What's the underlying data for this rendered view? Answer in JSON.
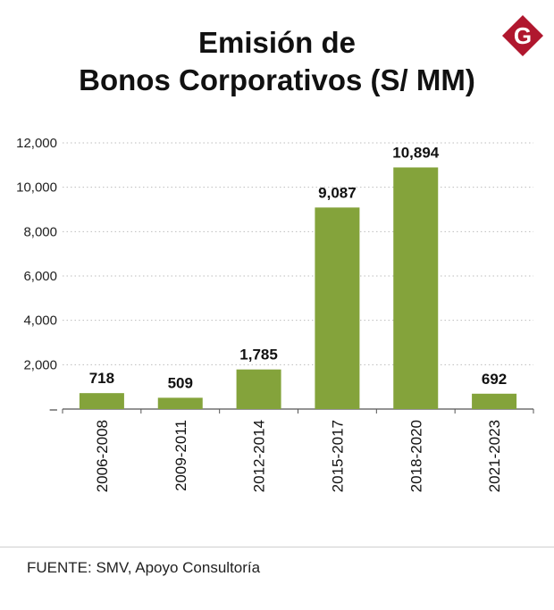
{
  "title_line1": "Emisión de",
  "title_line2": "Bonos Corporativos (S/ MM)",
  "logo_letter": "G",
  "source": "FUENTE: SMV, Apoyo Consultoría",
  "colors": {
    "bar": "#84A33B",
    "logo": "#B0172E",
    "grid": "#bdbdbd"
  },
  "chart_data": {
    "type": "bar",
    "categories": [
      "2006-2008",
      "2009-2011",
      "2012-2014",
      "2015-2017",
      "2018-2020",
      "2021-2023"
    ],
    "values": [
      718,
      509,
      1785,
      9087,
      10894,
      692
    ],
    "value_labels": [
      "718",
      "509",
      "1,785",
      "9,087",
      "10,894",
      "692"
    ],
    "yticks": [
      "–",
      "2,000",
      "4,000",
      "6,000",
      "8,000",
      "10,000",
      "12,000"
    ],
    "ylim": [
      0,
      12000
    ],
    "grid": true,
    "title": "Emisión de Bonos Corporativos (S/ MM)",
    "xlabel": "",
    "ylabel": ""
  }
}
